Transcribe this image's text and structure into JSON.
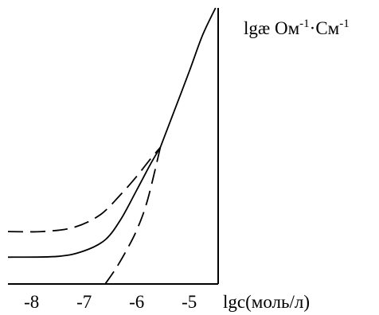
{
  "chart_data": {
    "type": "line",
    "xlabel": "lgc(моль/л)",
    "ylabel": {
      "prefix": "lgæ Ом",
      "sup1": "-1",
      "middle": "·См",
      "sup2": "-1"
    },
    "x_ticks": [
      {
        "value": -8,
        "label": "-8"
      },
      {
        "value": -7,
        "label": "-7"
      },
      {
        "value": -6,
        "label": "-6"
      },
      {
        "value": -5,
        "label": "-5"
      }
    ],
    "xlim": [
      -8.45,
      -4.45
    ],
    "ylim": [
      0,
      10
    ],
    "series": [
      {
        "style": "solid",
        "points": [
          [
            -8.45,
            0.97
          ],
          [
            -7.5,
            1.0
          ],
          [
            -7.0,
            1.2
          ],
          [
            -6.6,
            1.6
          ],
          [
            -6.3,
            2.35
          ],
          [
            -6.0,
            3.4
          ],
          [
            -5.75,
            4.3
          ],
          [
            -5.55,
            4.95
          ]
        ]
      },
      {
        "style": "dashed",
        "points": [
          [
            -8.45,
            1.9
          ],
          [
            -7.8,
            1.9
          ],
          [
            -7.2,
            2.05
          ],
          [
            -6.7,
            2.5
          ],
          [
            -6.3,
            3.25
          ],
          [
            -6.0,
            3.9
          ],
          [
            -5.75,
            4.5
          ],
          [
            -5.55,
            4.95
          ]
        ]
      },
      {
        "style": "dashed",
        "points": [
          [
            -6.6,
            0.0
          ],
          [
            -6.4,
            0.55
          ],
          [
            -6.2,
            1.2
          ],
          [
            -6.0,
            1.95
          ],
          [
            -5.8,
            3.0
          ],
          [
            -5.55,
            4.95
          ]
        ]
      },
      {
        "style": "solid",
        "points": [
          [
            -5.55,
            4.95
          ],
          [
            -5.3,
            6.2
          ],
          [
            -5.0,
            7.7
          ],
          [
            -4.75,
            9.0
          ],
          [
            -4.5,
            10.0
          ]
        ]
      }
    ],
    "grid": false,
    "legend": "none"
  }
}
